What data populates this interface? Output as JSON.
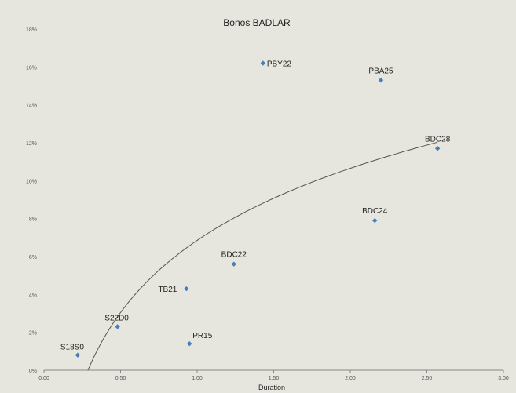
{
  "chart_data": {
    "type": "scatter",
    "title": "Bonos BADLAR",
    "xlabel": "Duration",
    "ylabel": "",
    "xlim": [
      0,
      3
    ],
    "ylim": [
      0,
      18
    ],
    "x_ticks": [
      "0,00",
      "0,50",
      "1,00",
      "1,50",
      "2,00",
      "2,50",
      "3,00"
    ],
    "y_ticks": [
      "0%",
      "2%",
      "4%",
      "6%",
      "8%",
      "10%",
      "12%",
      "14%",
      "16%",
      "18%"
    ],
    "grid": false,
    "legend": "none",
    "marker_color": "#4a7ebb",
    "trendline": {
      "type": "logarithmic",
      "color": "#555555"
    },
    "points": [
      {
        "label": "S18S0",
        "x": 0.22,
        "y": 0.8
      },
      {
        "label": "S22D0",
        "x": 0.48,
        "y": 2.3
      },
      {
        "label": "TB21",
        "x": 0.93,
        "y": 4.3
      },
      {
        "label": "PR15",
        "x": 0.95,
        "y": 1.4
      },
      {
        "label": "BDC22",
        "x": 1.24,
        "y": 5.6
      },
      {
        "label": "PBY22",
        "x": 1.43,
        "y": 16.2
      },
      {
        "label": "BDC24",
        "x": 2.16,
        "y": 7.9
      },
      {
        "label": "PBA25",
        "x": 2.2,
        "y": 15.3
      },
      {
        "label": "BDC28",
        "x": 2.57,
        "y": 11.7
      }
    ]
  }
}
